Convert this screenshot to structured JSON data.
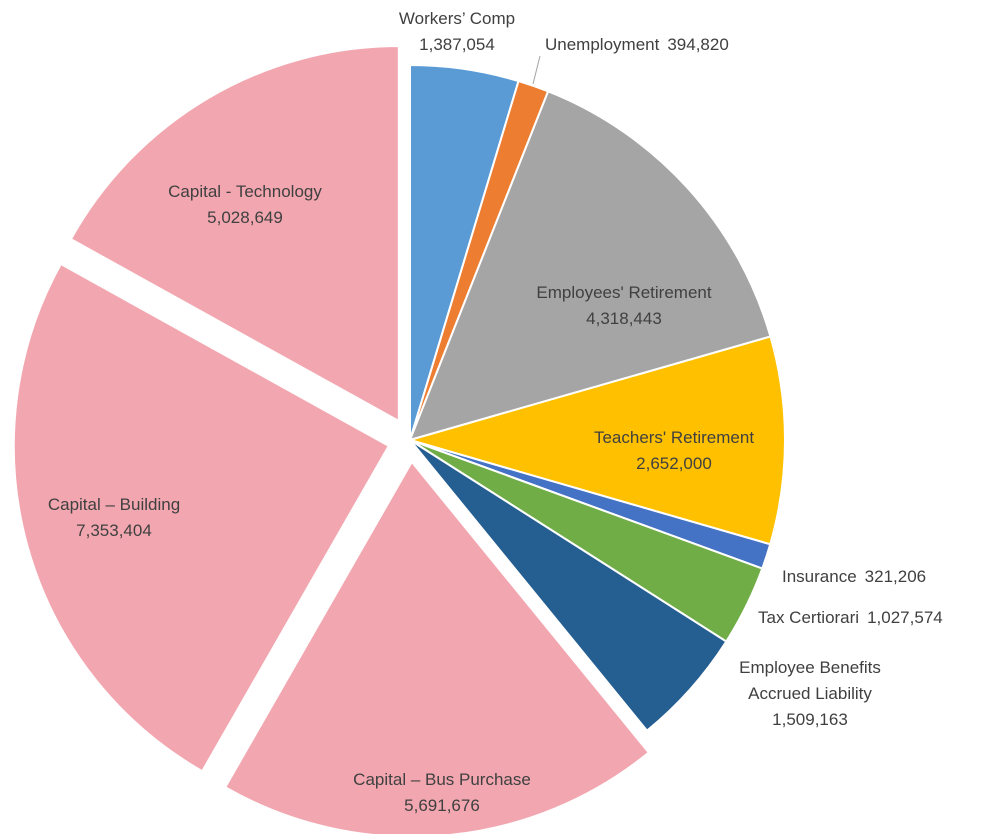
{
  "chart_data": {
    "type": "pie",
    "categories": [
      "Workers’ Comp",
      "Unemployment",
      "Employees' Retirement",
      "Teachers' Retirement",
      "Insurance",
      "Tax Certiorari",
      "Employee Benefits Accrued Liability",
      "Capital – Bus Purchase",
      "Capital – Building",
      "Capital - Technology"
    ],
    "values": [
      1387054,
      394820,
      4318443,
      2652000,
      321206,
      1027574,
      1509163,
      5691676,
      7353404,
      5028649
    ],
    "value_labels": [
      "1,387,054",
      "394,820",
      "4,318,443",
      "2,652,000",
      "321,206",
      "1,027,574",
      "1,509,163",
      "5,691,676",
      "7,353,404",
      "5,028,649"
    ],
    "colors": [
      "#5b9bd5",
      "#ed7d31",
      "#a5a5a5",
      "#ffc000",
      "#4472c4",
      "#70ad47",
      "#255e91",
      "#f2a7b0",
      "#f2a7b0",
      "#f2a7b0"
    ],
    "exploded": [
      false,
      false,
      false,
      false,
      false,
      false,
      false,
      true,
      true,
      true
    ]
  }
}
